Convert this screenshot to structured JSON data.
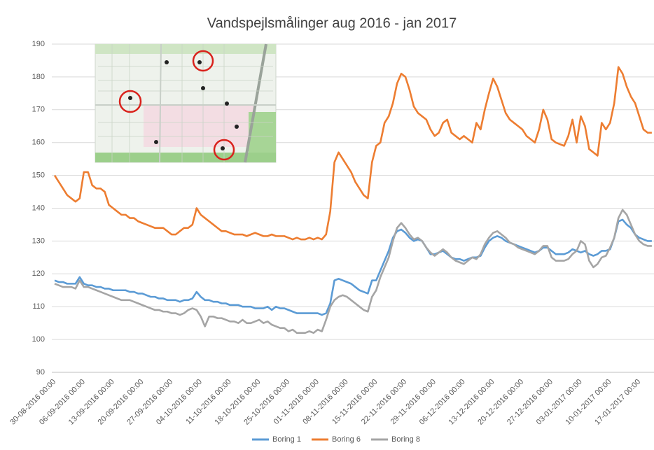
{
  "chart_data": {
    "type": "line",
    "title": "Vandspejlsmålinger aug 2016 - jan 2017",
    "categories": [
      "30-08-2016 00:00",
      null,
      null,
      null,
      null,
      null,
      null,
      "06-09-2016 00:00",
      null,
      null,
      null,
      null,
      null,
      null,
      "13-09-2016 00:00",
      null,
      null,
      null,
      null,
      null,
      null,
      "20-09-2016 00:00",
      null,
      null,
      null,
      null,
      null,
      null,
      "27-09-2016 00:00",
      null,
      null,
      null,
      null,
      null,
      null,
      "04-10-2016 00:00",
      null,
      null,
      null,
      null,
      null,
      null,
      "11-10-2016 00:00",
      null,
      null,
      null,
      null,
      null,
      null,
      "18-10-2016 00:00",
      null,
      null,
      null,
      null,
      null,
      null,
      "25-10-2016 00:00",
      null,
      null,
      null,
      null,
      null,
      null,
      "01-11-2016 00:00",
      null,
      null,
      null,
      null,
      null,
      null,
      "08-11-2016 00:00",
      null,
      null,
      null,
      null,
      null,
      null,
      "15-11-2016 00:00",
      null,
      null,
      null,
      null,
      null,
      null,
      "22-11-2016 00:00",
      null,
      null,
      null,
      null,
      null,
      null,
      "29-11-2016 00:00",
      null,
      null,
      null,
      null,
      null,
      null,
      "06-12-2016 00:00",
      null,
      null,
      null,
      null,
      null,
      null,
      "13-12-2016 00:00",
      null,
      null,
      null,
      null,
      null,
      null,
      "20-12-2016 00:00",
      null,
      null,
      null,
      null,
      null,
      null,
      "27-12-2016 00:00",
      null,
      null,
      null,
      null,
      null,
      null,
      "03-01-2017 00:00",
      null,
      null,
      null,
      null,
      null,
      null,
      "10-01-2017 00:00",
      null,
      null,
      null,
      null,
      null,
      null,
      "17-01-2017 00:00",
      null,
      null,
      null
    ],
    "series": [
      {
        "name": "Boring 1",
        "color": "#5b9bd5",
        "values": [
          118,
          117.5,
          117.5,
          117,
          117,
          117,
          119,
          117,
          116.5,
          116.5,
          116,
          116,
          115.5,
          115.5,
          115,
          115,
          115,
          115,
          114.5,
          114.5,
          114,
          114,
          113.5,
          113,
          113,
          112.5,
          112.5,
          112,
          112,
          112,
          111.5,
          112,
          112,
          112.5,
          114.5,
          113,
          112,
          112,
          111.5,
          111.5,
          111,
          111,
          110.5,
          110.5,
          110.5,
          110,
          110,
          110,
          109.5,
          109.5,
          109.5,
          110,
          109,
          110,
          109.5,
          109.5,
          109,
          108.5,
          108,
          108,
          108,
          108,
          108,
          108,
          107.5,
          108,
          111,
          118,
          118.5,
          118,
          117.5,
          117,
          116,
          115,
          114.5,
          114,
          118,
          118,
          121,
          124,
          127,
          131,
          133,
          133.5,
          132.5,
          131,
          130,
          130.5,
          130,
          128,
          126,
          126,
          126.5,
          127,
          126,
          125,
          124.5,
          124.5,
          124,
          124.5,
          125,
          125,
          125.5,
          128,
          130,
          131,
          131.5,
          131,
          130,
          129.5,
          129,
          128.5,
          128,
          127.5,
          127,
          126.5,
          127,
          128,
          128,
          127,
          126,
          126,
          126,
          126.5,
          127.5,
          127,
          126.5,
          127,
          126,
          125.5,
          126,
          127,
          127,
          127.5,
          131,
          136,
          136.5,
          135,
          134,
          132,
          131,
          130.5,
          130,
          130
        ]
      },
      {
        "name": "Boring 6",
        "color": "#ed7d31",
        "values": [
          150,
          148,
          146,
          144,
          143,
          142,
          143,
          151,
          151,
          147,
          146,
          146,
          145,
          141,
          140,
          139,
          138,
          138,
          137,
          137,
          136,
          135.5,
          135,
          134.5,
          134,
          134,
          134,
          133,
          132,
          132,
          133,
          134,
          134,
          135,
          140,
          138,
          137,
          136,
          135,
          134,
          133,
          133,
          132.5,
          132,
          132,
          132,
          131.5,
          132,
          132.5,
          132,
          131.5,
          131.5,
          132,
          131.5,
          131.5,
          131.5,
          131,
          130.5,
          131,
          130.5,
          130.5,
          131,
          130.5,
          131,
          130.5,
          132,
          139,
          154,
          157,
          155,
          153,
          151,
          148,
          146,
          144,
          143,
          154,
          159,
          160,
          166,
          168,
          172,
          178,
          181,
          180,
          176,
          171,
          169,
          168,
          167,
          164,
          162,
          163,
          166,
          167,
          163,
          162,
          161,
          162,
          161,
          160,
          166,
          164,
          170,
          175,
          179.5,
          177,
          173,
          169,
          167,
          166,
          165,
          164,
          162,
          161,
          160,
          164,
          170,
          167,
          161,
          160,
          159.5,
          159,
          162,
          167,
          160,
          168,
          165,
          158,
          157,
          156,
          166,
          164,
          166,
          172,
          183,
          181,
          177,
          174,
          172,
          168,
          164,
          163,
          163
        ]
      },
      {
        "name": "Boring 8",
        "color": "#a5a5a5",
        "values": [
          117,
          116.5,
          116,
          116,
          116,
          115.5,
          118,
          116,
          116,
          115.5,
          115,
          114.5,
          114,
          113.5,
          113,
          112.5,
          112,
          112,
          112,
          111.5,
          111,
          110.5,
          110,
          109.5,
          109,
          109,
          108.5,
          108.5,
          108,
          108,
          107.5,
          108,
          109,
          109.5,
          109,
          107,
          104,
          107,
          107,
          106.5,
          106.5,
          106,
          105.5,
          105.5,
          105,
          106,
          105,
          105,
          105.5,
          106,
          105,
          105.5,
          104.5,
          104,
          103.5,
          103.5,
          102.5,
          103,
          102,
          102,
          102,
          102.5,
          102,
          103,
          102.5,
          106,
          110,
          112,
          113,
          113.5,
          113,
          112,
          111,
          110,
          109,
          108.5,
          113,
          115,
          119,
          122,
          125,
          130,
          134,
          135.5,
          134,
          132,
          130.5,
          131,
          130,
          128,
          126.5,
          125.5,
          126.5,
          127.5,
          126.5,
          125,
          124,
          123.5,
          123,
          124,
          125,
          124.5,
          126,
          129,
          131,
          132.5,
          133,
          132,
          131,
          129.5,
          129,
          128,
          127.5,
          127,
          126.5,
          126,
          127,
          128.5,
          128.5,
          125,
          124,
          124,
          124,
          124.5,
          126,
          127,
          130,
          129,
          124,
          122,
          123,
          125,
          125.5,
          128,
          131,
          137,
          139.5,
          138,
          135,
          132,
          130,
          129,
          128.5,
          128.5
        ]
      }
    ],
    "ylim": [
      90,
      190
    ],
    "yticks": [
      90,
      100,
      110,
      120,
      130,
      140,
      150,
      160,
      170,
      180,
      190
    ],
    "grid": true,
    "legend": "bottom"
  }
}
